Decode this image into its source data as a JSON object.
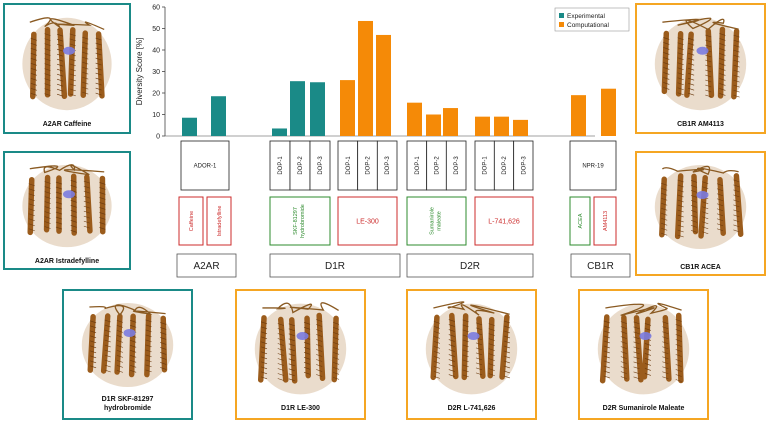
{
  "chart_data": {
    "type": "bar",
    "ylabel": "Diversity Score [%]",
    "ylim": [
      0,
      60
    ],
    "yticks": [
      0,
      10,
      20,
      30,
      40,
      50,
      60
    ],
    "legend": {
      "placement": "top-right",
      "entries": [
        {
          "name": "Experimental",
          "color": "#1a8a87"
        },
        {
          "name": "Computational",
          "color": "#f58a07"
        }
      ]
    },
    "bars": [
      {
        "label": "ADOR-1",
        "value": 8.5,
        "type": "Experimental"
      },
      {
        "label": "ADOR-1",
        "value": 18.5,
        "type": "Experimental"
      },
      {
        "label": "DOP-1",
        "value": 3.5,
        "type": "Experimental"
      },
      {
        "label": "DOP-2",
        "value": 25.5,
        "type": "Experimental"
      },
      {
        "label": "DOP-3",
        "value": 25,
        "type": "Experimental"
      },
      {
        "label": "DOP-1",
        "value": 26,
        "type": "Computational"
      },
      {
        "label": "DOP-2",
        "value": 53.5,
        "type": "Computational"
      },
      {
        "label": "DOP-3",
        "value": 47,
        "type": "Computational"
      },
      {
        "label": "DOP-1",
        "value": 15.5,
        "type": "Computational"
      },
      {
        "label": "DOP-2",
        "value": 10,
        "type": "Computational"
      },
      {
        "label": "DOP-3",
        "value": 13,
        "type": "Computational"
      },
      {
        "label": "DOP-1",
        "value": 9,
        "type": "Computational"
      },
      {
        "label": "DOP-2",
        "value": 9,
        "type": "Computational"
      },
      {
        "label": "DOP-3",
        "value": 7.5,
        "type": "Computational"
      },
      {
        "label": "NPR-19",
        "value": 19,
        "type": "Computational"
      },
      {
        "label": "NPR-19",
        "value": 22,
        "type": "Computational"
      }
    ],
    "methods": [
      "ADOR-1",
      "DOP-1",
      "DOP-2",
      "DOP-3",
      "DOP-1",
      "DOP-2",
      "DOP-3",
      "DOP-1",
      "DOP-2",
      "DOP-3",
      "DOP-1",
      "DOP-2",
      "DOP-3",
      "NPR-19"
    ],
    "ligands": [
      {
        "name": "Caffeine",
        "color": "#cc2b2b"
      },
      {
        "name": "Istradefylline",
        "color": "#cc2b2b"
      },
      {
        "name": "SKF-81297 hydrobromide",
        "color": "#2e8b2e"
      },
      {
        "name": "LE-300",
        "color": "#cc2b2b"
      },
      {
        "name": "Sumanirole maleate",
        "color": "#2e8b2e"
      },
      {
        "name": "L-741,626",
        "color": "#cc2b2b"
      },
      {
        "name": "ACEA",
        "color": "#2e8b2e"
      },
      {
        "name": "AM4113",
        "color": "#cc2b2b"
      }
    ],
    "receptors": [
      "A2AR",
      "D1R",
      "D2R",
      "CB1R"
    ]
  },
  "panels": [
    {
      "caption": "A2AR Caffeine",
      "border": "teal"
    },
    {
      "caption": "A2AR Istradefylline",
      "border": "teal"
    },
    {
      "caption": "CB1R AM4113",
      "border": "orange"
    },
    {
      "caption": "CB1R ACEA",
      "border": "orange"
    },
    {
      "caption": "D1R SKF-81297 hydrobromide",
      "border": "teal"
    },
    {
      "caption": "D1R LE-300",
      "border": "orange"
    },
    {
      "caption": "D2R L-741,626",
      "border": "orange"
    },
    {
      "caption": "D2R Sumanirole Maleate",
      "border": "orange"
    }
  ]
}
